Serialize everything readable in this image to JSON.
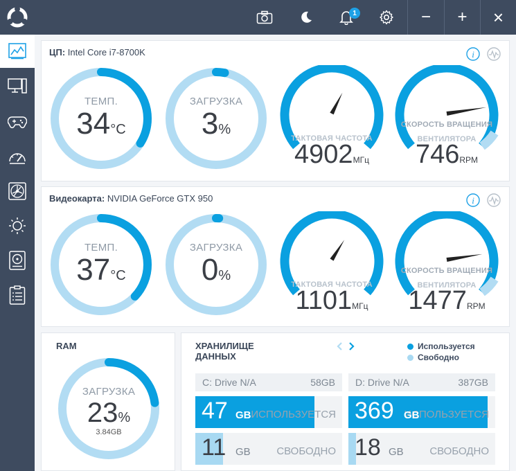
{
  "topbar": {
    "logo_icon": "nzxt-ring-logo",
    "icons": [
      "camera-icon",
      "moon-icon",
      "bell-icon",
      "gear-icon"
    ],
    "notification_count": "1",
    "window": {
      "minimize": "−",
      "maximize": "+",
      "close": "×"
    }
  },
  "sidebar": {
    "items": [
      {
        "name": "dashboard-icon",
        "active": true
      },
      {
        "name": "pc-monitor-icon"
      },
      {
        "name": "gamepad-icon"
      },
      {
        "name": "tuning-gauge-icon"
      },
      {
        "name": "fan-icon"
      },
      {
        "name": "lighting-sun-icon"
      },
      {
        "name": "hdd-icon"
      },
      {
        "name": "clipboard-icon"
      }
    ]
  },
  "cpu": {
    "title_prefix": "ЦП:",
    "title_name": "Intel Core i7-8700K",
    "temp": {
      "label": "ТЕМП.",
      "value": "34",
      "unit": "°C",
      "level": 0.34
    },
    "load": {
      "label": "ЗАГРУЗКА",
      "value": "3",
      "unit": "%",
      "level": 0.03
    },
    "clock": {
      "label": "ТАКТОВАЯ ЧАСТОТА",
      "value": "4902",
      "unit": "МГц",
      "level": 0.6
    },
    "fan": {
      "label1": "СКОРОСТЬ ВРАЩЕНИЯ",
      "label2": "ВЕНТИЛЯТОРА",
      "value": "746",
      "unit": "RPM",
      "level": 0.8
    }
  },
  "gpu": {
    "title_prefix": "Видеокарта:",
    "title_name": "NVIDIA GeForce GTX 950",
    "temp": {
      "label": "ТЕМП.",
      "value": "37",
      "unit": "°C",
      "level": 0.37
    },
    "load": {
      "label": "ЗАГРУЗКА",
      "value": "0",
      "unit": "%",
      "level": 0.01
    },
    "clock": {
      "label": "ТАКТОВАЯ ЧАСТОТА",
      "value": "1101",
      "unit": "МГц",
      "level": 0.62
    },
    "fan": {
      "label1": "СКОРОСТЬ ВРАЩЕНИЯ",
      "label2": "ВЕНТИЛЯТОРА",
      "value": "1477",
      "unit": "RPM",
      "level": 0.8
    }
  },
  "ram": {
    "title": "RAM",
    "label": "ЗАГРУЗКА",
    "value": "23",
    "unit": "%",
    "sub": "3.84GB",
    "level": 0.23
  },
  "storage": {
    "title_line1": "ХРАНИЛИЩЕ",
    "title_line2": "ДАННЫХ",
    "legend_used": "Используется",
    "legend_free": "Свободно",
    "colors": {
      "used": "#0aa0e0",
      "free": "#a8d9f2"
    },
    "drives": [
      {
        "name": "C: Drive N/A",
        "size": "58GB",
        "used": "47",
        "used_unit": "GB",
        "used_label": "ИСПОЛЬЗУЕТСЯ",
        "free": "11",
        "free_unit": "GB",
        "free_label": "СВОБОДНО",
        "used_frac": 0.81,
        "free_frac": 0.19
      },
      {
        "name": "D: Drive N/A",
        "size": "387GB",
        "used": "369",
        "used_unit": "GB",
        "used_label": "ИСПОЛЬЗУЕТСЯ",
        "free": "18",
        "free_unit": "GB",
        "free_label": "СВОБОДНО",
        "used_frac": 0.95,
        "free_frac": 0.05
      }
    ]
  }
}
